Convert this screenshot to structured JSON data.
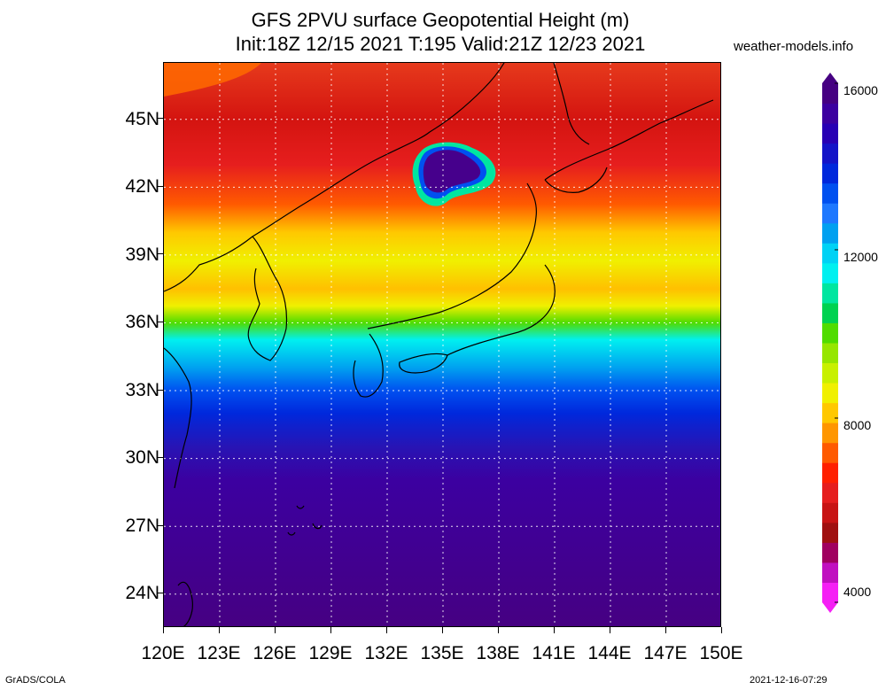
{
  "title_line1": "GFS 2PVU surface Geopotential Height (m)",
  "title_line2": "Init:18Z 12/15 2021 T:195 Valid:21Z 12/23 2021",
  "site": "weather-models.info",
  "footer_left": "GrADS/COLA",
  "footer_right": "2021-12-16-07:29",
  "map": {
    "lon_range": [
      120,
      150
    ],
    "lat_range": [
      22.5,
      47.5
    ],
    "lon_ticks": [
      "120E",
      "123E",
      "126E",
      "129E",
      "132E",
      "135E",
      "138E",
      "141E",
      "144E",
      "147E",
      "150E"
    ],
    "lat_ticks": [
      "45N",
      "42N",
      "39N",
      "36N",
      "33N",
      "30N",
      "27N",
      "24N"
    ],
    "lat_tick_values": [
      45,
      42,
      39,
      36,
      33,
      30,
      27,
      24
    ],
    "grid": true
  },
  "colorbar": {
    "labels": [
      "16000",
      "12000",
      "8000",
      "4000"
    ],
    "colors": [
      "#f520f5",
      "#c010c0",
      "#a00060",
      "#a01010",
      "#c81414",
      "#e61e1e",
      "#ff2000",
      "#ff5a00",
      "#ff9600",
      "#ffc800",
      "#f0f000",
      "#c8f000",
      "#96e600",
      "#50dc00",
      "#00d250",
      "#00e6a0",
      "#00f0f0",
      "#00d2f5",
      "#00a0f0",
      "#1e78ff",
      "#0050f0",
      "#0028dc",
      "#1414c8",
      "#2800b4",
      "#3c00a0",
      "#460082"
    ]
  }
}
